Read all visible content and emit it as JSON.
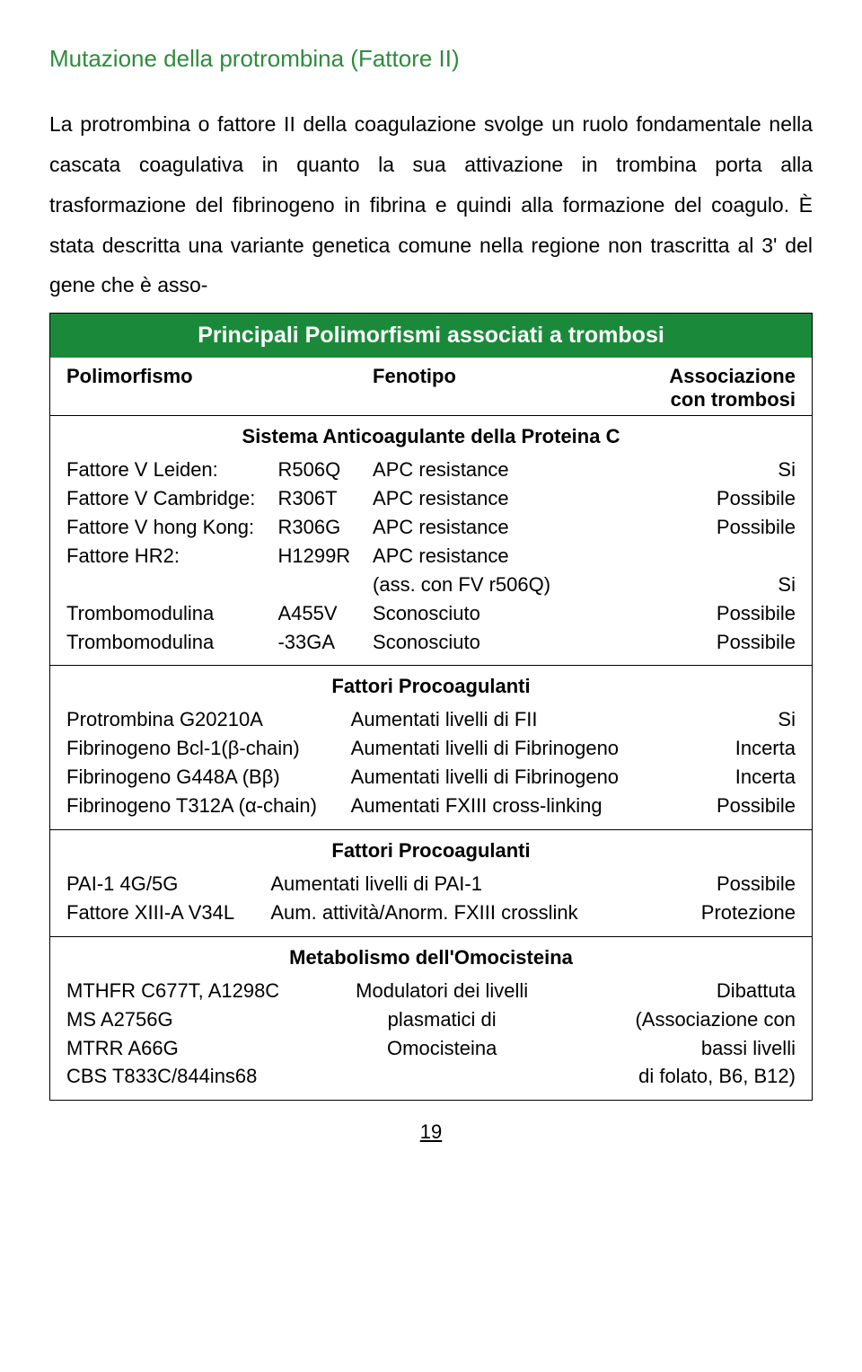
{
  "title": "Mutazione della protrombina (Fattore II)",
  "paragraph": "La protrombina o fattore II della coagulazione svolge un ruolo fondamentale nella cascata coagulativa in quanto la sua attivazione in trombina porta alla trasformazione del fibrinogeno in fibrina e quindi alla formazione del coagulo. È stata descritta una variante genetica comune nella regione non trascritta al 3' del gene che è asso-",
  "table": {
    "header": "Principali Polimorfismi associati a trombosi",
    "columns": {
      "c1": "Polimorfismo",
      "c2": "Fenotipo",
      "c3a": "Associazione",
      "c3b": "con trombosi"
    },
    "sec1": {
      "title": "Sistema Anticoagulante della Proteina C",
      "rows": [
        {
          "a": "Fattore V Leiden:",
          "b": "R506Q",
          "c": "APC resistance",
          "d": "Si"
        },
        {
          "a": "Fattore V Cambridge:",
          "b": "R306T",
          "c": "APC resistance",
          "d": "Possibile"
        },
        {
          "a": "Fattore V hong Kong:",
          "b": "R306G",
          "c": "APC resistance",
          "d": "Possibile"
        },
        {
          "a": "Fattore HR2:",
          "b": "H1299R",
          "c": "APC resistance",
          "d": ""
        },
        {
          "a": "",
          "b": "",
          "c": "(ass. con FV r506Q)",
          "d": "Si"
        },
        {
          "a": "Trombomodulina",
          "b": "A455V",
          "c": "Sconosciuto",
          "d": "Possibile"
        },
        {
          "a": "Trombomodulina",
          "b": "-33GA",
          "c": "Sconosciuto",
          "d": "Possibile"
        }
      ]
    },
    "sec2": {
      "title": "Fattori Procoagulanti",
      "rows": [
        {
          "a": "Protrombina G20210A",
          "b": "Aumentati livelli di FII",
          "c": "Si"
        },
        {
          "a": "Fibrinogeno Bcl-1(β-chain)",
          "b": "Aumentati livelli di Fibrinogeno",
          "c": "Incerta"
        },
        {
          "a": "Fibrinogeno G448A (Bβ)",
          "b": "Aumentati livelli di Fibrinogeno",
          "c": "Incerta"
        },
        {
          "a": "Fibrinogeno T312A (α-chain)",
          "b": "Aumentati FXIII cross-linking",
          "c": "Possibile"
        }
      ]
    },
    "sec3": {
      "title": "Fattori Procoagulanti",
      "rows": [
        {
          "a": "PAI-1 4G/5G",
          "b": "Aumentati livelli di PAI-1",
          "c": "Possibile"
        },
        {
          "a": "Fattore XIII-A V34L",
          "b": "Aum. attività/Anorm. FXIII crosslink",
          "c": "Protezione"
        }
      ]
    },
    "sec4": {
      "title": "Metabolismo dell'Omocisteina",
      "rows": [
        {
          "a": "MTHFR C677T, A1298C",
          "b": "Modulatori dei livelli",
          "c": "Dibattuta"
        },
        {
          "a": "MS A2756G",
          "b": "plasmatici di",
          "c": "(Associazione con"
        },
        {
          "a": "MTRR A66G",
          "b": "Omocisteina",
          "c": "bassi livelli"
        },
        {
          "a": "CBS T833C/844ins68",
          "b": "",
          "c": "di folato, B6, B12)"
        }
      ]
    }
  },
  "page_number": "19"
}
